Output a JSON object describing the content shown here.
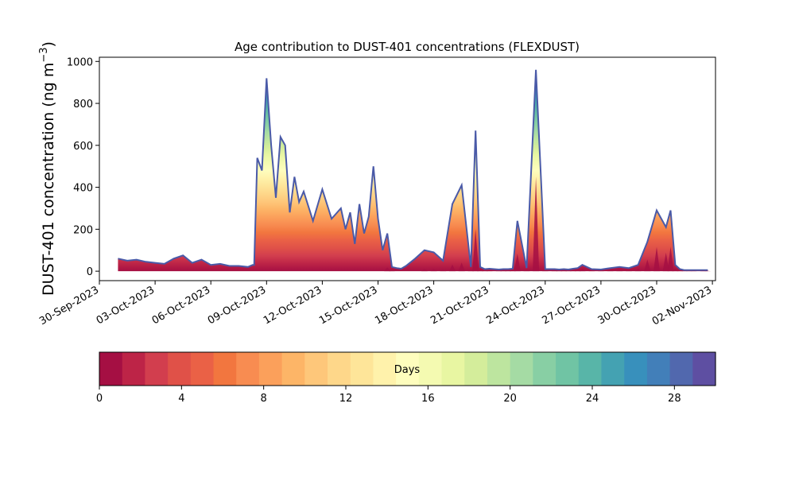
{
  "chart_data": {
    "type": "area",
    "stacked": true,
    "title": "Age contribution to DUST-401 concentrations (FLEXDUST)",
    "ylabel_main": "DUST-401 concentration (ng m",
    "ylabel_exp": "−3",
    "ylabel_close": ")",
    "ylim": [
      -45,
      1020
    ],
    "yticks": [
      0,
      200,
      400,
      600,
      800,
      1000
    ],
    "xlim": [
      "2023-09-30T00:00",
      "2023-11-02T04:00"
    ],
    "xticks": [
      "30-Sep-2023",
      "03-Oct-2023",
      "06-Oct-2023",
      "09-Oct-2023",
      "12-Oct-2023",
      "15-Oct-2023",
      "18-Oct-2023",
      "21-Oct-2023",
      "24-Oct-2023",
      "27-Oct-2023",
      "30-Oct-2023",
      "02-Nov-2023"
    ],
    "grid": false,
    "legend": "none",
    "series_note": "30 stacked age classes (0-30 days); total concentration below, share of young age classes in 'young_fraction'",
    "x": [
      "2023-10-01T00:00",
      "2023-10-01T12:00",
      "2023-10-02T00:00",
      "2023-10-02T12:00",
      "2023-10-03T00:00",
      "2023-10-03T12:00",
      "2023-10-04T00:00",
      "2023-10-04T12:00",
      "2023-10-05T00:00",
      "2023-10-05T12:00",
      "2023-10-06T00:00",
      "2023-10-06T12:00",
      "2023-10-07T00:00",
      "2023-10-07T12:00",
      "2023-10-08T00:00",
      "2023-10-08T06:00",
      "2023-10-08T08:00",
      "2023-10-08T12:00",
      "2023-10-08T18:00",
      "2023-10-09T00:00",
      "2023-10-09T06:00",
      "2023-10-09T12:00",
      "2023-10-09T18:00",
      "2023-10-10T00:00",
      "2023-10-10T06:00",
      "2023-10-10T12:00",
      "2023-10-10T18:00",
      "2023-10-11T00:00",
      "2023-10-11T12:00",
      "2023-10-12T00:00",
      "2023-10-12T12:00",
      "2023-10-13T00:00",
      "2023-10-13T06:00",
      "2023-10-13T12:00",
      "2023-10-13T18:00",
      "2023-10-14T00:00",
      "2023-10-14T06:00",
      "2023-10-14T12:00",
      "2023-10-14T18:00",
      "2023-10-15T00:00",
      "2023-10-15T06:00",
      "2023-10-15T12:00",
      "2023-10-15T18:00",
      "2023-10-16T00:00",
      "2023-10-16T06:00",
      "2023-10-16T12:00",
      "2023-10-17T00:00",
      "2023-10-17T12:00",
      "2023-10-18T00:00",
      "2023-10-18T12:00",
      "2023-10-19T00:00",
      "2023-10-19T12:00",
      "2023-10-20T00:00",
      "2023-10-20T06:00",
      "2023-10-20T12:00",
      "2023-10-20T18:00",
      "2023-10-21T00:00",
      "2023-10-21T12:00",
      "2023-10-21T18:00",
      "2023-10-22T00:00",
      "2023-10-22T06:00",
      "2023-10-22T12:00",
      "2023-10-23T00:00",
      "2023-10-23T12:00",
      "2023-10-24T00:00",
      "2023-10-24T12:00",
      "2023-10-24T18:00",
      "2023-10-25T00:00",
      "2023-10-25T06:00",
      "2023-10-25T12:00",
      "2023-10-25T18:00",
      "2023-10-26T00:00",
      "2023-10-26T12:00",
      "2023-10-27T00:00",
      "2023-10-27T12:00",
      "2023-10-28T00:00",
      "2023-10-28T12:00",
      "2023-10-29T00:00",
      "2023-10-29T12:00",
      "2023-10-30T00:00",
      "2023-10-30T12:00",
      "2023-10-30T18:00",
      "2023-10-31T00:00",
      "2023-10-31T06:00",
      "2023-10-31T12:00",
      "2023-10-31T18:00",
      "2023-11-01T00:00",
      "2023-11-01T12:00",
      "2023-11-01T18:00"
    ],
    "total": [
      60,
      50,
      55,
      45,
      40,
      35,
      60,
      75,
      40,
      55,
      30,
      35,
      25,
      25,
      20,
      30,
      30,
      540,
      480,
      920,
      600,
      350,
      640,
      600,
      280,
      450,
      330,
      380,
      240,
      390,
      250,
      300,
      200,
      280,
      130,
      320,
      180,
      260,
      500,
      250,
      100,
      180,
      20,
      15,
      12,
      25,
      60,
      100,
      90,
      50,
      320,
      410,
      20,
      670,
      20,
      10,
      12,
      8,
      10,
      10,
      12,
      240,
      15,
      960,
      10,
      10,
      8,
      10,
      8,
      12,
      15,
      30,
      10,
      8,
      15,
      20,
      15,
      30,
      140,
      290,
      210,
      290,
      30,
      10,
      5,
      5,
      5,
      5,
      5
    ],
    "young_fraction": [
      0.15,
      0.15,
      0.15,
      0.15,
      0.15,
      0.15,
      0.15,
      0.15,
      0.15,
      0.15,
      0.15,
      0.15,
      0.15,
      0.15,
      0.15,
      0.15,
      0.15,
      0.3,
      0.35,
      0.35,
      0.35,
      0.4,
      0.4,
      0.4,
      0.4,
      0.45,
      0.45,
      0.45,
      0.45,
      0.4,
      0.45,
      0.45,
      0.45,
      0.5,
      0.5,
      0.5,
      0.5,
      0.5,
      0.5,
      0.55,
      0.55,
      0.6,
      0.6,
      0.5,
      0.5,
      0.5,
      0.5,
      0.6,
      0.6,
      0.6,
      0.6,
      0.6,
      0.7,
      0.8,
      0.9,
      0.8,
      0.8,
      0.8,
      0.8,
      0.8,
      0.8,
      0.85,
      0.9,
      0.97,
      0.9,
      0.85,
      0.85,
      0.85,
      0.85,
      0.85,
      0.85,
      0.85,
      0.85,
      0.85,
      0.85,
      0.85,
      0.85,
      0.85,
      0.9,
      0.9,
      0.92,
      0.9,
      0.9,
      0.85,
      0.85,
      0.85,
      0.85,
      0.85,
      0.85
    ]
  },
  "colorbar": {
    "label": "Days",
    "range": [
      0,
      30
    ],
    "ticks": [
      "0",
      "4",
      "8",
      "12",
      "16",
      "20",
      "24",
      "28"
    ],
    "colors": [
      "#a50f43",
      "#bd2447",
      "#d23e4e",
      "#e05148",
      "#ea6146",
      "#f2763f",
      "#f88c51",
      "#fba05b",
      "#fdb567",
      "#fec77a",
      "#fed78a",
      "#fee599",
      "#fff2ab",
      "#fefdbd",
      "#f4fab1",
      "#e8f6a2",
      "#d4ed9b",
      "#bde59f",
      "#a5dba4",
      "#88cfa4",
      "#70c4a4",
      "#58b5a8",
      "#44a2b2",
      "#3890bc",
      "#427fb9",
      "#5168ae",
      "#5e4fa2"
    ]
  }
}
